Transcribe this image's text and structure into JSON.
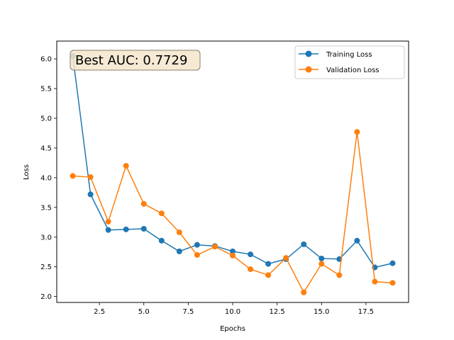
{
  "chart_data": {
    "type": "line",
    "title": "",
    "xlabel": "Epochs",
    "ylabel": "Loss",
    "xlim": [
      0.1,
      19.9
    ],
    "ylim": [
      1.9,
      6.3
    ],
    "xticks": [
      2.5,
      5.0,
      7.5,
      10.0,
      12.5,
      15.0,
      17.5
    ],
    "xtick_labels": [
      "2.5",
      "5.0",
      "7.5",
      "10.0",
      "12.5",
      "15.0",
      "17.5"
    ],
    "yticks": [
      2.0,
      2.5,
      3.0,
      3.5,
      4.0,
      4.5,
      5.0,
      5.5,
      6.0
    ],
    "ytick_labels": [
      "2.0",
      "2.5",
      "3.0",
      "3.5",
      "4.0",
      "4.5",
      "5.0",
      "5.5",
      "6.0"
    ],
    "grid": false,
    "legend_position": "top-right",
    "x": [
      1,
      2,
      3,
      4,
      5,
      6,
      7,
      8,
      9,
      10,
      11,
      12,
      13,
      14,
      15,
      16,
      17,
      18,
      19
    ],
    "series": [
      {
        "name": "Training Loss",
        "color": "#1f77b4",
        "values": [
          6.05,
          3.72,
          3.12,
          3.13,
          3.14,
          2.94,
          2.76,
          2.87,
          2.85,
          2.76,
          2.71,
          2.55,
          2.63,
          2.88,
          2.64,
          2.63,
          2.94,
          2.49,
          2.56
        ]
      },
      {
        "name": "Validation Loss",
        "color": "#ff7f0e",
        "values": [
          4.03,
          4.01,
          3.26,
          4.2,
          3.56,
          3.4,
          3.08,
          2.7,
          2.84,
          2.69,
          2.46,
          2.36,
          2.65,
          2.07,
          2.55,
          2.36,
          4.77,
          2.25,
          2.23
        ]
      }
    ],
    "annotation": {
      "text": "Best AUC: 0.7729",
      "background": "#f5e6cc",
      "border": "#8a7d6b"
    }
  }
}
